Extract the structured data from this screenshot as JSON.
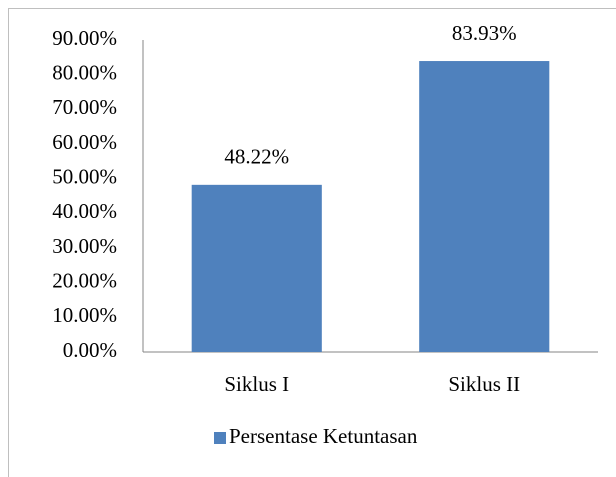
{
  "chart_data": {
    "type": "bar",
    "categories": [
      "Siklus I",
      "Siklus II"
    ],
    "series": [
      {
        "name": "Persentase Ketuntasan",
        "color": "#4f81bd",
        "values": [
          48.22,
          83.93
        ],
        "value_labels": [
          "48.22%",
          "83.93%"
        ]
      }
    ],
    "ylim": [
      0,
      90
    ],
    "yticks": [
      {
        "value": 0,
        "label": "0.00%"
      },
      {
        "value": 10,
        "label": "10.00%"
      },
      {
        "value": 20,
        "label": "20.00%"
      },
      {
        "value": 30,
        "label": "30.00%"
      },
      {
        "value": 40,
        "label": "40.00%"
      },
      {
        "value": 50,
        "label": "50.00%"
      },
      {
        "value": 60,
        "label": "60.00%"
      },
      {
        "value": 70,
        "label": "70.00%"
      },
      {
        "value": 80,
        "label": "80.00%"
      },
      {
        "value": 90,
        "label": "90.00%"
      }
    ],
    "grid": false,
    "legend": "bottom"
  }
}
